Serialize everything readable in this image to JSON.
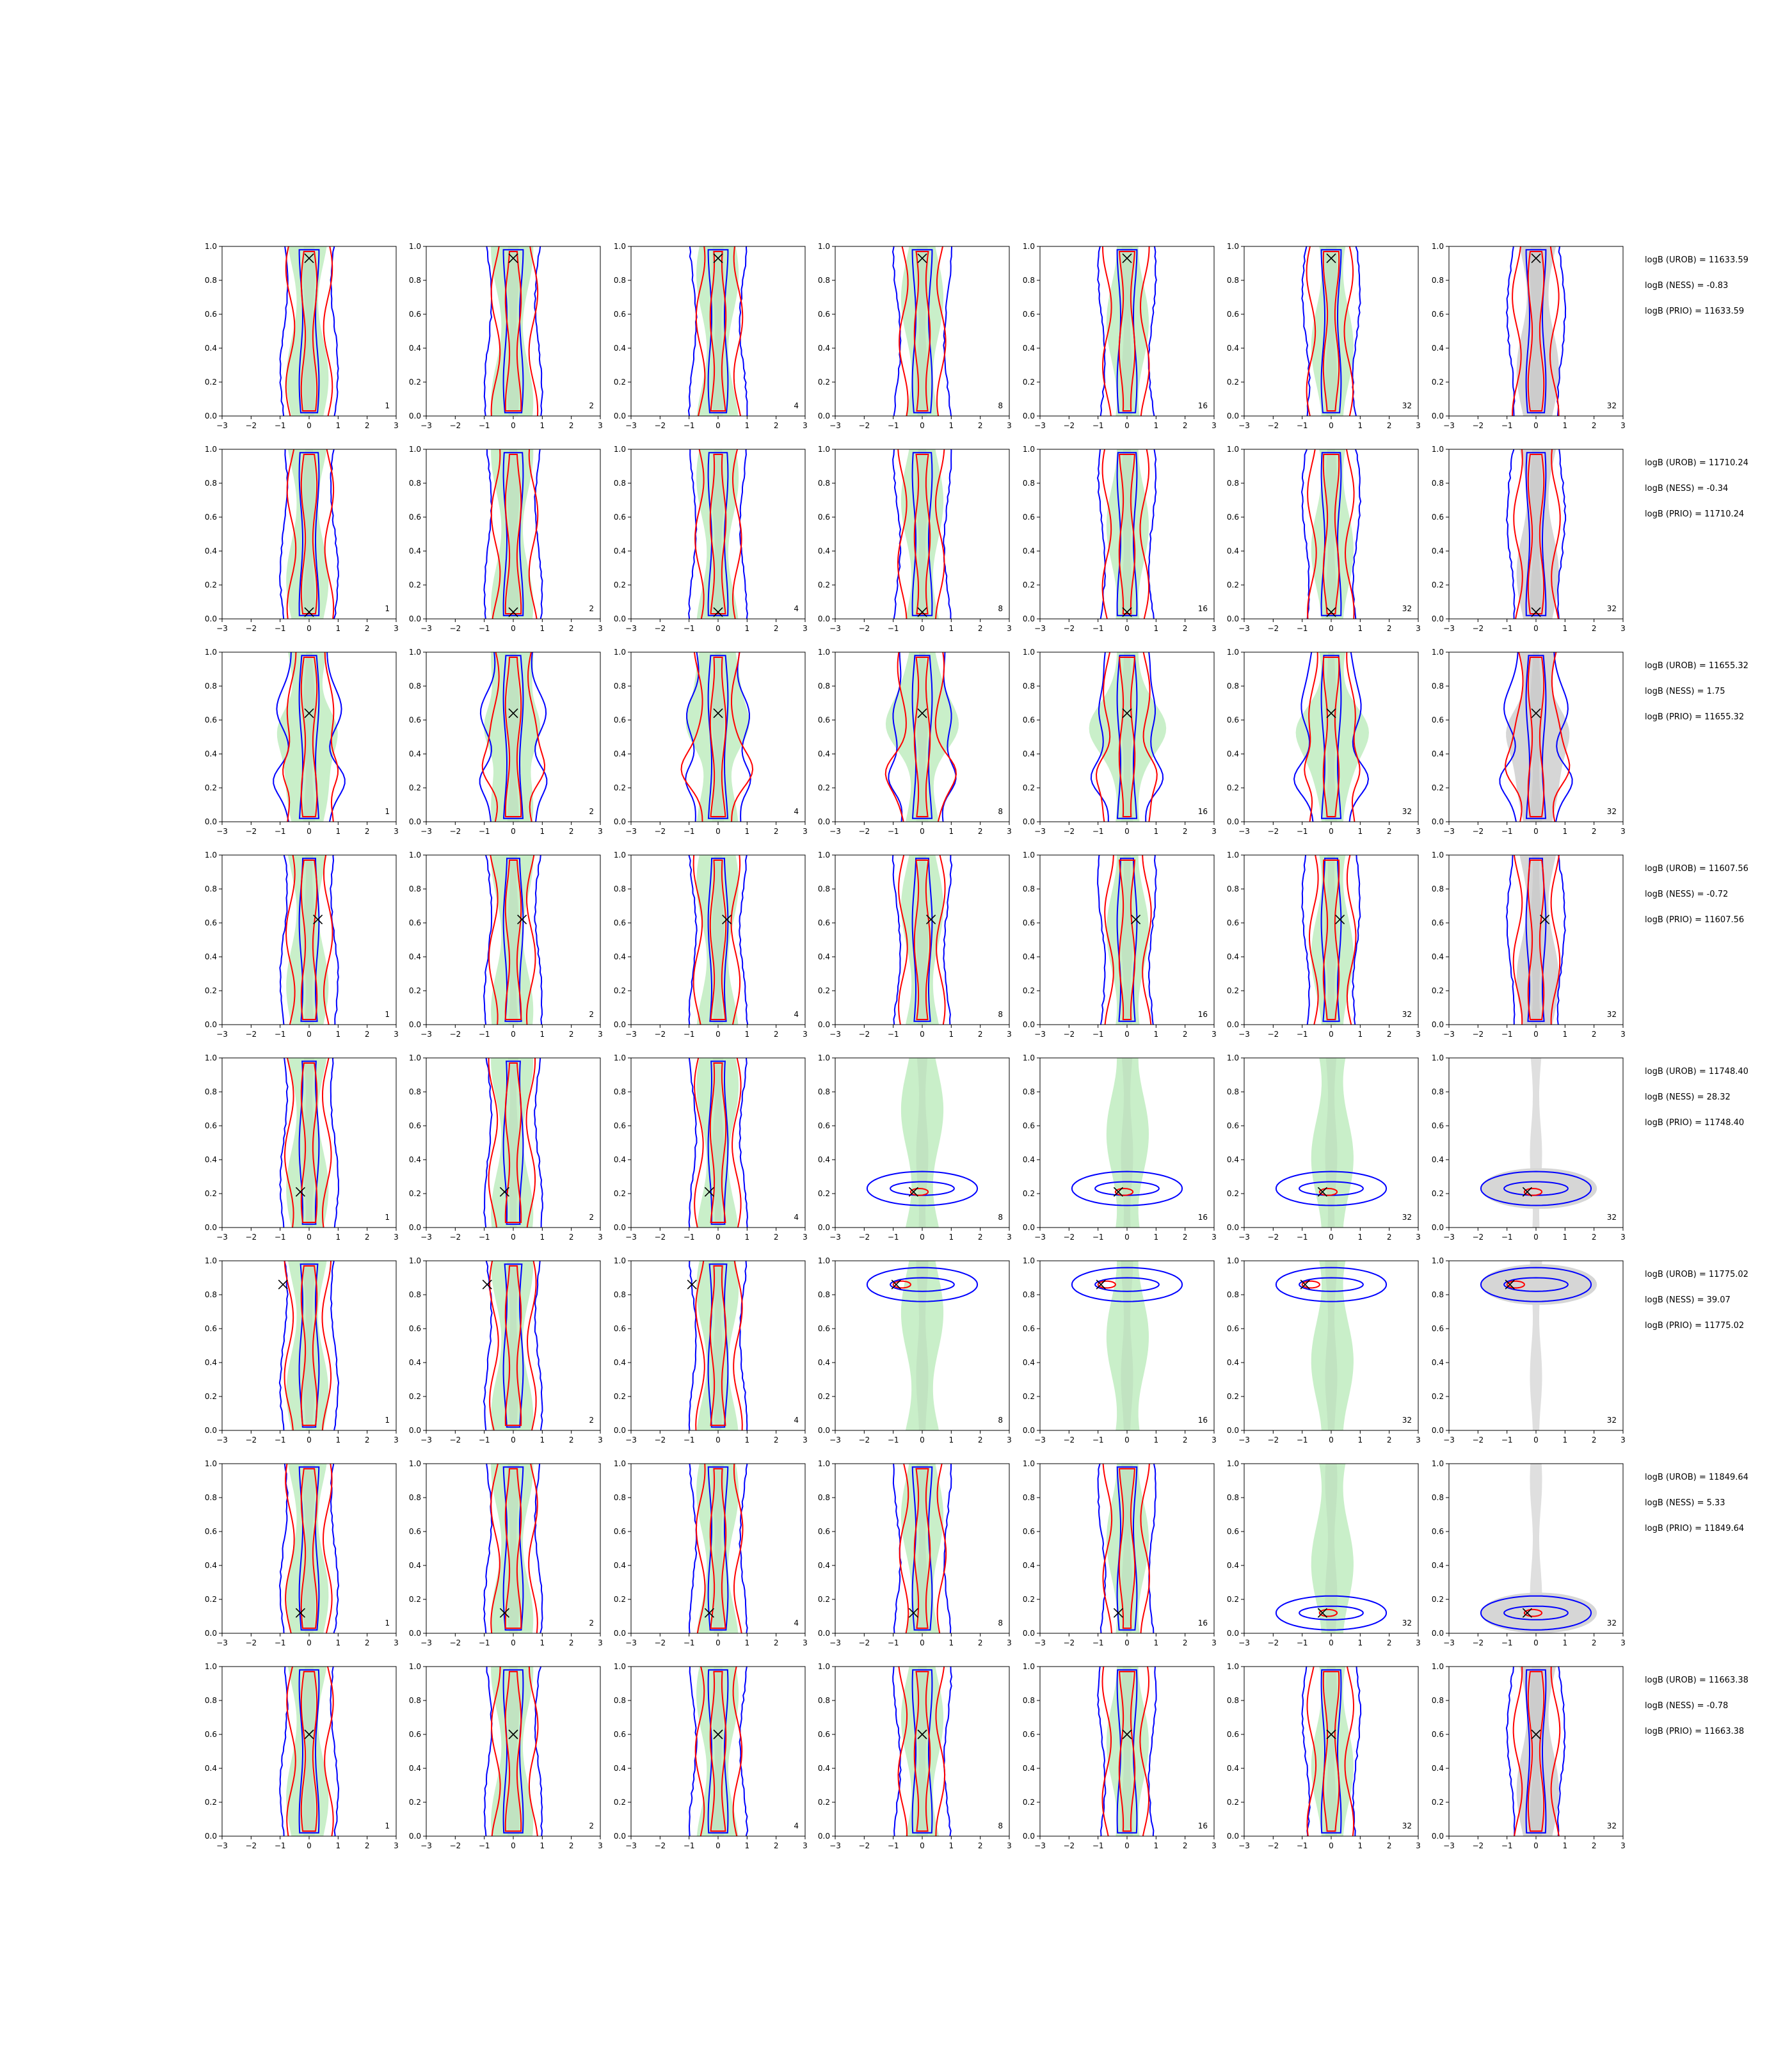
{
  "figure": {
    "x_ticks": [
      "−3",
      "−2",
      "−1",
      "0",
      "1",
      "2",
      "3"
    ],
    "y_ticks": [
      "0.0",
      "0.2",
      "0.4",
      "0.6",
      "0.8",
      "1.0"
    ],
    "column_labels": [
      "1",
      "2",
      "4",
      "8",
      "16",
      "32",
      "32"
    ]
  },
  "colors": {
    "blue": "#0000ff",
    "red": "#ff0000",
    "green_fill": "#c9efc9",
    "gray_fill": "#d6d6d6",
    "marker": "#000000"
  },
  "chart_data": {
    "type": "contour-grid",
    "xlim": [
      -3,
      3
    ],
    "ylim": [
      0,
      1
    ],
    "rows": [
      {
        "logb": [
          "logB (UROB) = 11633.59",
          "logB (NESS) = -0.83",
          "logB (PRIO) = 11633.59"
        ],
        "marker": [
          0.0,
          0.93
        ],
        "mode": "vert"
      },
      {
        "logb": [
          "logB (UROB) = 11710.24",
          "logB (NESS) = -0.34",
          "logB (PRIO) = 11710.24"
        ],
        "marker": [
          0.0,
          0.04
        ],
        "mode": "vert"
      },
      {
        "logb": [
          "logB (UROB) = 11655.32",
          "logB (NESS) = 1.75",
          "logB (PRIO) = 11655.32"
        ],
        "marker": [
          0.0,
          0.64
        ],
        "mode": "bulge"
      },
      {
        "logb": [
          "logB (UROB) = 11607.56",
          "logB (NESS) = -0.72",
          "logB (PRIO) = 11607.56"
        ],
        "marker": [
          0.3,
          0.62
        ],
        "mode": "vert"
      },
      {
        "logb": [
          "logB (UROB) = 11748.40",
          "logB (NESS) = 28.32",
          "logB (PRIO) = 11748.40"
        ],
        "marker": [
          -0.3,
          0.21
        ],
        "mode": "horiz",
        "horiz_from": 3,
        "horiz_y": 0.23
      },
      {
        "logb": [
          "logB (UROB) = 11775.02",
          "logB (NESS) = 39.07",
          "logB (PRIO) = 11775.02"
        ],
        "marker": [
          -0.9,
          0.86
        ],
        "mode": "horiz",
        "horiz_from": 3,
        "horiz_y": 0.86
      },
      {
        "logb": [
          "logB (UROB) = 11849.64",
          "logB (NESS) = 5.33",
          "logB (PRIO) = 11849.64"
        ],
        "marker": [
          -0.3,
          0.12
        ],
        "mode": "horiz",
        "horiz_from": 5,
        "horiz_y": 0.12
      },
      {
        "logb": [
          "logB (UROB) = 11663.38",
          "logB (NESS) = -0.78",
          "logB (PRIO) = 11663.38"
        ],
        "marker": [
          0.0,
          0.6
        ],
        "mode": "vert"
      }
    ]
  }
}
